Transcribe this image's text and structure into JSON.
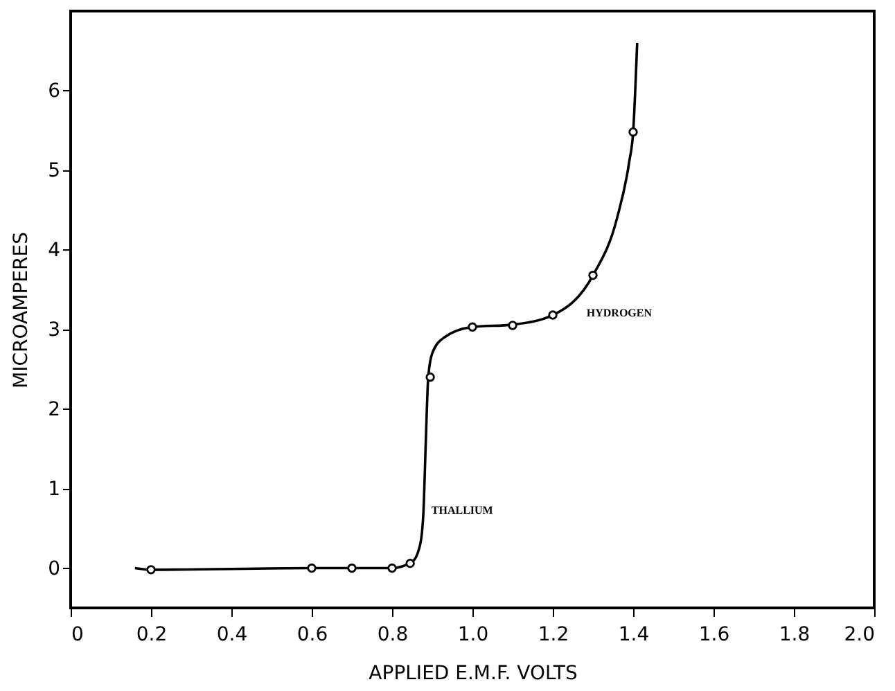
{
  "chart_data": {
    "type": "line",
    "xlabel": "APPLIED E.M.F. VOLTS",
    "ylabel": "MICROAMPERES",
    "xlim": [
      0,
      2.0
    ],
    "ylim": [
      -0.5,
      7.0
    ],
    "xticks": [
      0,
      0.2,
      0.4,
      0.6,
      0.8,
      {
        "value": 1,
        "label": "1.0"
      },
      1.2,
      1.4,
      1.6,
      1.8,
      {
        "value": 2,
        "label": "2.0"
      }
    ],
    "yticks": [
      0,
      1,
      2,
      3,
      4,
      5,
      6
    ],
    "grid": false,
    "series": [
      {
        "color": "#000000",
        "marker": "none",
        "line_style": "solid",
        "x": [
          0.16,
          0.2,
          0.6,
          0.8,
          0.85,
          0.87,
          0.878,
          0.884,
          0.89,
          0.9,
          0.93,
          1.0,
          1.1,
          1.2,
          1.3,
          1.36,
          1.39,
          1.4,
          1.41
        ],
        "values": [
          0,
          -0.02,
          0,
          0,
          0.08,
          0.3,
          0.7,
          1.6,
          2.4,
          2.7,
          2.9,
          3.03,
          3.06,
          3.18,
          3.68,
          4.4,
          5.1,
          5.48,
          6.6
        ]
      },
      {
        "type": "scatter",
        "color": "#000000",
        "marker": "circle",
        "x": [
          0.2,
          0.6,
          0.7,
          0.8,
          0.845,
          0.895,
          1.0,
          1.1,
          1.2,
          1.3,
          1.4
        ],
        "values": [
          -0.02,
          0,
          0,
          0,
          0.06,
          2.4,
          3.03,
          3.05,
          3.18,
          3.68,
          5.48
        ]
      }
    ],
    "annotations": [
      "THALLIUM",
      "HYDROGEN"
    ]
  }
}
